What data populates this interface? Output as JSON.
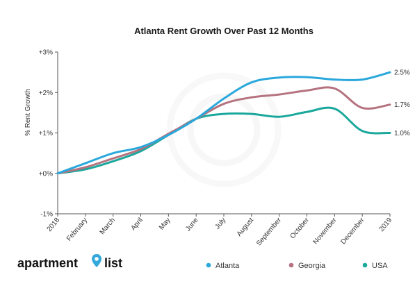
{
  "chart_data": {
    "type": "line",
    "title": "Atlanta Rent Growth Over Past 12 Months",
    "xlabel": "",
    "ylabel": "% Rent Growth",
    "categories": [
      "2018",
      "February",
      "March",
      "April",
      "May",
      "June",
      "July",
      "August",
      "September",
      "October",
      "November",
      "December",
      "2019"
    ],
    "y_ticks": [
      3,
      2,
      1,
      0,
      -1
    ],
    "y_tick_labels": [
      "+3%",
      "+2%",
      "+1%",
      "+0%",
      "-1%"
    ],
    "ylim": [
      -1,
      3
    ],
    "grid": false,
    "legend_position": "bottom-right",
    "series": [
      {
        "name": "Atlanta",
        "color": "#2aa8dc",
        "end_label": "2.5%",
        "values": [
          0.0,
          0.25,
          0.5,
          0.65,
          0.95,
          1.35,
          1.85,
          2.25,
          2.37,
          2.38,
          2.32,
          2.32,
          2.5
        ]
      },
      {
        "name": "Georgia",
        "color": "#b5727f",
        "end_label": "1.7%",
        "values": [
          0.0,
          0.15,
          0.37,
          0.6,
          0.98,
          1.35,
          1.72,
          1.88,
          1.95,
          2.05,
          2.1,
          1.62,
          1.7
        ]
      },
      {
        "name": "USA",
        "color": "#1aa79c",
        "end_label": "1.0%",
        "values": [
          0.0,
          0.1,
          0.3,
          0.55,
          0.95,
          1.35,
          1.47,
          1.47,
          1.4,
          1.52,
          1.6,
          1.05,
          1.0
        ]
      }
    ]
  },
  "branding": {
    "logo_text": "apartment list",
    "logo_word1": "apartment",
    "logo_word2": "list",
    "logo_icon": "map-pin-icon"
  }
}
